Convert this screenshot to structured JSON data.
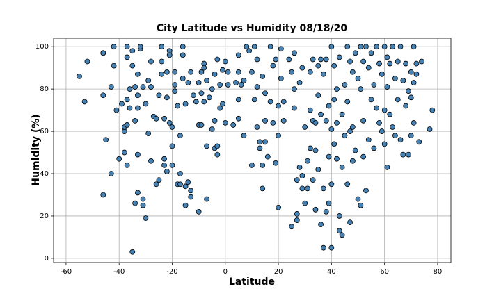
{
  "chart_data": {
    "type": "scatter",
    "title": "City Latitude vs Humidity 08/18/20",
    "x_label": "Latitude",
    "y_label": "Humidity (%)",
    "x": [
      -55,
      -53,
      -52,
      -46,
      -46,
      -46,
      -46,
      -45,
      -43,
      -43,
      -42,
      -42,
      -41,
      -40,
      -39,
      -38,
      -38,
      -38,
      -37,
      -37,
      -37,
      -37,
      -37,
      -36,
      -36,
      -35,
      -35,
      -35,
      -34,
      -34,
      -34,
      -33,
      -33,
      -33,
      -33,
      -33,
      -32,
      -32,
      -31,
      -31,
      -31,
      -30,
      -30,
      -29,
      -29,
      -28,
      -28,
      -28,
      -27,
      -26,
      -26,
      -25,
      -25,
      -24,
      -24,
      -24,
      -23,
      -23,
      -23,
      -22,
      -22,
      -22,
      -21,
      -21,
      -21,
      -20,
      -20,
      -20,
      -19,
      -19,
      -19,
      -18,
      -18,
      -17,
      -17,
      -17,
      -16,
      -16,
      -16,
      -15,
      -15,
      -15,
      -14,
      -14,
      -13,
      -13,
      -13,
      -12,
      -11,
      -10,
      -10,
      -10,
      -9,
      -9,
      -9,
      -8,
      -8,
      -8,
      -7,
      -7,
      -7,
      -6,
      -5,
      -5,
      -4,
      -4,
      -4,
      -3,
      -3,
      -3,
      -2,
      -2,
      -1,
      -1,
      0,
      0,
      1,
      1,
      3,
      4,
      5,
      5,
      5,
      5,
      6,
      7,
      7,
      8,
      9,
      10,
      10,
      11,
      11,
      12,
      12,
      12,
      13,
      13,
      14,
      14,
      14,
      15,
      15,
      15,
      16,
      17,
      17,
      18,
      18,
      19,
      19,
      20,
      20,
      20,
      21,
      21,
      22,
      22,
      24,
      25,
      25,
      26,
      26,
      26,
      27,
      27,
      27,
      28,
      28,
      29,
      29,
      29,
      30,
      30,
      31,
      31,
      32,
      32,
      32,
      33,
      33,
      33,
      34,
      34,
      34,
      35,
      35,
      35,
      36,
      36,
      36,
      37,
      37,
      37,
      38,
      38,
      38,
      39,
      39,
      39,
      40,
      40,
      40,
      40,
      41,
      41,
      41,
      42,
      42,
      42,
      43,
      43,
      43,
      44,
      44,
      44,
      45,
      45,
      46,
      46,
      46,
      47,
      47,
      47,
      48,
      48,
      48,
      49,
      49,
      50,
      50,
      51,
      51,
      51,
      52,
      52,
      52,
      53,
      53,
      54,
      54,
      55,
      55,
      56,
      56,
      57,
      57,
      58,
      58,
      59,
      59,
      60,
      60,
      60,
      61,
      61,
      61,
      62,
      62,
      63,
      63,
      64,
      64,
      65,
      65,
      66,
      66,
      67,
      67,
      68,
      68,
      69,
      69,
      70,
      70,
      70,
      71,
      71,
      71,
      72,
      72,
      73,
      74,
      77,
      78
    ],
    "values": [
      86,
      74,
      93,
      97,
      97,
      77,
      30,
      56,
      81,
      40,
      91,
      100,
      70,
      47,
      73,
      60,
      50,
      62,
      63,
      44,
      75,
      95,
      100,
      80,
      71,
      91,
      98,
      3,
      26,
      65,
      81,
      71,
      87,
      77,
      31,
      49,
      99,
      100,
      81,
      28,
      25,
      19,
      73,
      84,
      59,
      93,
      81,
      46,
      67,
      66,
      35,
      37,
      77,
      87,
      100,
      93,
      66,
      44,
      47,
      41,
      76,
      88,
      98,
      96,
      64,
      62,
      53,
      44,
      88,
      79,
      82,
      72,
      35,
      40,
      35,
      58,
      85,
      100,
      96,
      73,
      25,
      34,
      36,
      83,
      88,
      29,
      32,
      77,
      74,
      63,
      83,
      22,
      88,
      78,
      63,
      92,
      90,
      74,
      84,
      53,
      28,
      76,
      80,
      61,
      87,
      65,
      52,
      94,
      53,
      49,
      82,
      71,
      89,
      73,
      93,
      64,
      82,
      88,
      63,
      83,
      96,
      88,
      75,
      66,
      82,
      58,
      84,
      100,
      98,
      44,
      88,
      100,
      75,
      94,
      81,
      62,
      55,
      52,
      86,
      44,
      33,
      78,
      65,
      55,
      48,
      100,
      74,
      91,
      64,
      94,
      45,
      72,
      58,
      24,
      99,
      85,
      74,
      65,
      94,
      88,
      15,
      97,
      80,
      71,
      37,
      21,
      18,
      83,
      43,
      90,
      39,
      33,
      62,
      26,
      46,
      33,
      88,
      70,
      52,
      94,
      65,
      37,
      64,
      51,
      23,
      91,
      77,
      42,
      94,
      68,
      16,
      87,
      33,
      5,
      94,
      65,
      22,
      72,
      48,
      26,
      100,
      61,
      35,
      5,
      91,
      75,
      54,
      80,
      64,
      47,
      95,
      20,
      13,
      68,
      43,
      11,
      82,
      58,
      100,
      74,
      35,
      93,
      60,
      17,
      88,
      62,
      46,
      97,
      51,
      85,
      28,
      100,
      80,
      25,
      93,
      65,
      48,
      100,
      32,
      90,
      56,
      97,
      75,
      82,
      52,
      100,
      71,
      92,
      64,
      87,
      60,
      100,
      70,
      54,
      95,
      81,
      43,
      92,
      68,
      100,
      62,
      85,
      58,
      93,
      75,
      100,
      56,
      84,
      49,
      92,
      72,
      79,
      49,
      88,
      76,
      58,
      100,
      83,
      64,
      92,
      87,
      55,
      93,
      61,
      70
    ],
    "color": "#4682b4",
    "edgecolor": "#000000",
    "xlim": [
      -64.7,
      85
    ],
    "ylim": [
      -2,
      104
    ],
    "xticks": [
      -60,
      -40,
      -20,
      0,
      20,
      40,
      60,
      80
    ],
    "yticks": [
      0,
      20,
      40,
      60,
      80,
      100
    ],
    "grid": true
  }
}
